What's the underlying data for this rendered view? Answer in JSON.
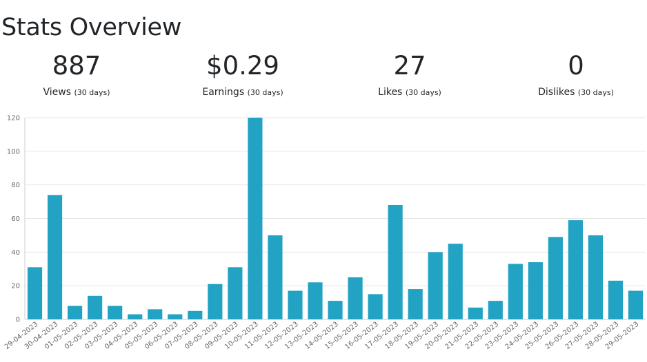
{
  "page": {
    "title": "Stats Overview"
  },
  "stats": [
    {
      "value": "887",
      "label": "Views",
      "period": "(30 days)"
    },
    {
      "value": "$0.29",
      "label": "Earnings",
      "period": "(30 days)"
    },
    {
      "value": "27",
      "label": "Likes",
      "period": "(30 days)"
    },
    {
      "value": "0",
      "label": "Dislikes",
      "period": "(30 days)"
    }
  ],
  "chart_data": {
    "type": "bar",
    "title": "",
    "xlabel": "",
    "ylabel": "",
    "ylim": [
      0,
      120
    ],
    "yticks": [
      0,
      20,
      40,
      60,
      80,
      100,
      120
    ],
    "grid": true,
    "color": "#22a3c4",
    "categories": [
      "29-04-2023",
      "30-04-2023",
      "01-05-2023",
      "02-05-2023",
      "03-05-2023",
      "04-05-2023",
      "05-05-2023",
      "06-05-2023",
      "07-05-2023",
      "08-05-2023",
      "09-05-2023",
      "10-05-2023",
      "11-05-2023",
      "12-05-2023",
      "13-05-2023",
      "14-05-2023",
      "15-05-2023",
      "16-05-2023",
      "17-05-2023",
      "18-05-2023",
      "19-05-2023",
      "20-05-2023",
      "21-05-2023",
      "22-05-2023",
      "23-05-2023",
      "24-05-2023",
      "25-05-2023",
      "26-05-2023",
      "27-05-2023",
      "28-05-2023",
      "29-05-2023"
    ],
    "values": [
      31,
      74,
      8,
      14,
      8,
      3,
      6,
      3,
      5,
      21,
      31,
      120,
      50,
      17,
      22,
      11,
      25,
      15,
      68,
      18,
      40,
      45,
      7,
      11,
      33,
      34,
      49,
      59,
      50,
      23,
      17
    ]
  }
}
